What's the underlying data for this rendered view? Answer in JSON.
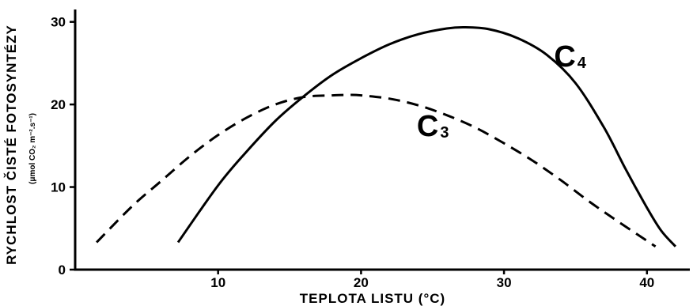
{
  "chart_data": {
    "type": "line",
    "xlabel": "TEPLOTA  LISTU  (°C)",
    "ylabel": "RYCHLOST ČISTÉ FOTOSYNTÉZY",
    "ylabel_unit": "(μmol CO₂ m⁻².s⁻¹)",
    "xlim": [
      0,
      43
    ],
    "ylim": [
      0,
      31.5
    ],
    "xticks": [
      10,
      20,
      30,
      40
    ],
    "yticks": [
      0,
      10,
      20,
      30
    ],
    "grid": false,
    "legend": "none",
    "series": [
      {
        "name": "C",
        "subscript": "4",
        "style": "solid",
        "color": "#000000",
        "x": [
          7.2,
          10,
          12,
          14,
          16,
          18,
          20,
          22,
          24,
          26,
          27.3,
          29,
          31,
          33,
          35,
          37,
          38.5,
          40,
          41,
          42
        ],
        "y": [
          3.3,
          10.2,
          14.3,
          18.0,
          21.0,
          23.6,
          25.6,
          27.3,
          28.5,
          29.2,
          29.35,
          29.1,
          28.0,
          26.0,
          22.6,
          17.2,
          12.2,
          7.5,
          4.7,
          2.8
        ]
      },
      {
        "name": "C",
        "subscript": "3",
        "style": "dashed",
        "color": "#000000",
        "x": [
          1.5,
          4,
          6,
          8,
          10,
          12,
          14,
          16,
          18,
          19,
          20,
          22,
          24,
          26,
          28,
          30,
          32,
          34,
          36,
          38,
          40.6
        ],
        "y": [
          3.3,
          7.7,
          10.7,
          13.7,
          16.3,
          18.4,
          20.0,
          20.9,
          21.1,
          21.15,
          21.1,
          20.7,
          19.9,
          18.7,
          17.2,
          15.3,
          13.2,
          10.8,
          8.2,
          5.8,
          2.8
        ]
      }
    ],
    "annotations": [
      {
        "text": "C",
        "sub": "4",
        "x": 33.5,
        "y": 24.6
      },
      {
        "text": "C",
        "sub": "3",
        "x": 23.9,
        "y": 16.2
      }
    ]
  }
}
